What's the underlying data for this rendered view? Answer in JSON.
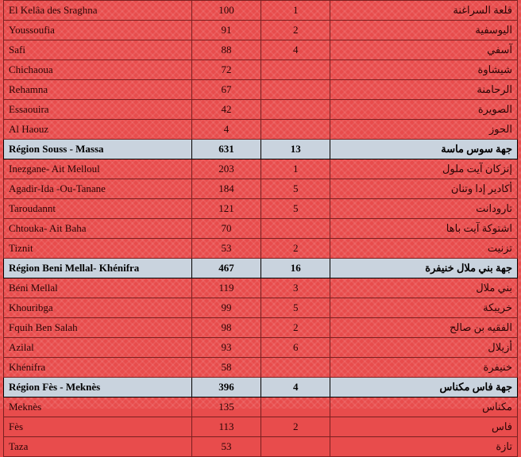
{
  "rows": [
    {
      "type": "data",
      "fr": "El Kelâa des  Sraghna",
      "n1": "100",
      "n2": "1",
      "ar": "قلعة السراغنة"
    },
    {
      "type": "data",
      "fr": "Youssoufia",
      "n1": "91",
      "n2": "2",
      "ar": "اليوسفية"
    },
    {
      "type": "data",
      "fr": "Safi",
      "n1": "88",
      "n2": "4",
      "ar": "آسفي"
    },
    {
      "type": "data",
      "fr": "Chichaoua",
      "n1": "72",
      "n2": "",
      "ar": "شيشاوة"
    },
    {
      "type": "data",
      "fr": "Rehamna",
      "n1": "67",
      "n2": "",
      "ar": "الرحامنة"
    },
    {
      "type": "data",
      "fr": "Essaouira",
      "n1": "42",
      "n2": "",
      "ar": "الصويرة"
    },
    {
      "type": "data",
      "fr": "Al  Haouz",
      "n1": "4",
      "n2": "",
      "ar": "الحوز"
    },
    {
      "type": "header",
      "fr": "Région Souss - Massa",
      "n1": "631",
      "n2": "13",
      "ar": "جهة سوس ماسة"
    },
    {
      "type": "data",
      "fr": "Inezgane- Ait Melloul",
      "n1": "203",
      "n2": "1",
      "ar": "إنزكان آيت ملول"
    },
    {
      "type": "data",
      "fr": "Agadir-Ida -Ou-Tanane",
      "n1": "184",
      "n2": "5",
      "ar": "أكادير إدا وتنان"
    },
    {
      "type": "data",
      "fr": "Taroudannt",
      "n1": "121",
      "n2": "5",
      "ar": "تارودانت"
    },
    {
      "type": "data",
      "fr": "Chtouka- Ait Baha",
      "n1": "70",
      "n2": "",
      "ar": "اشتوكة آيت باها"
    },
    {
      "type": "data",
      "fr": "Tiznit",
      "n1": "53",
      "n2": "2",
      "ar": "تزنيت"
    },
    {
      "type": "header",
      "fr": "Région Beni Mellal- Khénifra",
      "n1": "467",
      "n2": "16",
      "ar": "جهة بني ملال خنيفرة"
    },
    {
      "type": "data",
      "fr": "Béni Mellal",
      "n1": "119",
      "n2": "3",
      "ar": "بني ملال"
    },
    {
      "type": "data",
      "fr": "Khouribga",
      "n1": "99",
      "n2": "5",
      "ar": "خريبكة"
    },
    {
      "type": "data",
      "fr": "Fquih Ben Salah",
      "n1": "98",
      "n2": "2",
      "ar": "الفقيه بن صالح"
    },
    {
      "type": "data",
      "fr": "Azilal",
      "n1": "93",
      "n2": "6",
      "ar": "أزيلال"
    },
    {
      "type": "data",
      "fr": "Khénifra",
      "n1": "58",
      "n2": "",
      "ar": "خنيفرة"
    },
    {
      "type": "header",
      "fr": "Région Fès - Meknès",
      "n1": "396",
      "n2": "4",
      "ar": "جهة فاس مكناس"
    },
    {
      "type": "data",
      "fr": "Meknès",
      "n1": "135",
      "n2": "",
      "ar": "مكناس"
    },
    {
      "type": "data",
      "fr": "Fès",
      "n1": "113",
      "n2": "2",
      "ar": "فاس"
    },
    {
      "type": "data",
      "fr": "Taza",
      "n1": "53",
      "n2": "",
      "ar": "تازة"
    }
  ]
}
